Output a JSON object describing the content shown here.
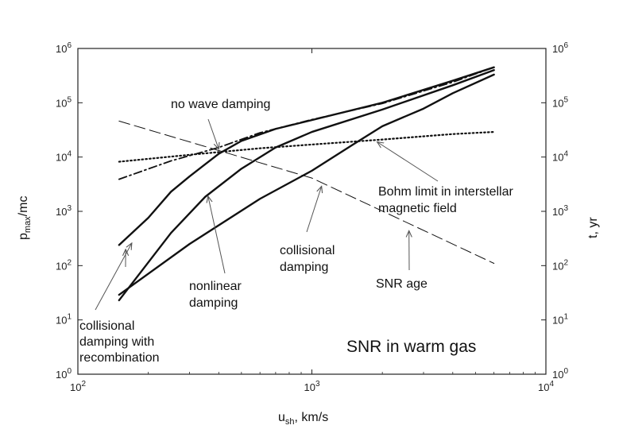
{
  "chart_data": {
    "type": "line",
    "title": "SNR in warm gas",
    "xlabel": {
      "main": "u",
      "sub": "sh",
      "rest": ", km/s"
    },
    "ylabel_left": {
      "main": "p",
      "sub": "max",
      "rest": "/mc"
    },
    "ylabel_right": "t, yr",
    "x_scale": "log",
    "y_scale": "log",
    "xlim": [
      100,
      10000
    ],
    "ylim": [
      1,
      1000000
    ],
    "x_ticks": [
      {
        "value": 100,
        "base": "10",
        "exp": "2"
      },
      {
        "value": 1000,
        "base": "10",
        "exp": "3"
      },
      {
        "value": 10000,
        "base": "10",
        "exp": "4"
      }
    ],
    "y_ticks": [
      {
        "value": 1,
        "base": "10",
        "exp": "0"
      },
      {
        "value": 10,
        "base": "10",
        "exp": "1"
      },
      {
        "value": 100,
        "base": "10",
        "exp": "2"
      },
      {
        "value": 1000,
        "base": "10",
        "exp": "3"
      },
      {
        "value": 10000,
        "base": "10",
        "exp": "4"
      },
      {
        "value": 100000,
        "base": "10",
        "exp": "5"
      },
      {
        "value": 1000000,
        "base": "10",
        "exp": "6"
      }
    ],
    "grid": false,
    "series": [
      {
        "id": "no-wave-damping",
        "style": "dash-dot",
        "points": [
          [
            150,
            3900
          ],
          [
            250,
            8500
          ],
          [
            400,
            15000
          ],
          [
            600,
            28000
          ],
          [
            1000,
            49000
          ],
          [
            2000,
            97000
          ],
          [
            4000,
            240000
          ],
          [
            6000,
            450000
          ]
        ]
      },
      {
        "id": "collisional-damping-with-recombination",
        "style": "solid",
        "points": [
          [
            150,
            240
          ],
          [
            200,
            760
          ],
          [
            250,
            2300
          ],
          [
            300,
            4400
          ],
          [
            400,
            11500
          ],
          [
            500,
            19800
          ],
          [
            700,
            33000
          ],
          [
            1000,
            48000
          ],
          [
            2000,
            100000
          ],
          [
            4000,
            255000
          ],
          [
            6000,
            450000
          ]
        ]
      },
      {
        "id": "nonlinear-damping",
        "style": "solid",
        "points": [
          [
            150,
            23
          ],
          [
            250,
            400
          ],
          [
            350,
            1850
          ],
          [
            500,
            6100
          ],
          [
            700,
            15000
          ],
          [
            1000,
            29000
          ],
          [
            2000,
            75000
          ],
          [
            4000,
            210000
          ],
          [
            6000,
            400000
          ]
        ]
      },
      {
        "id": "collisional-damping",
        "style": "solid",
        "points": [
          [
            150,
            29
          ],
          [
            300,
            250
          ],
          [
            600,
            1700
          ],
          [
            1000,
            5600
          ],
          [
            1500,
            17000
          ],
          [
            2000,
            37000
          ],
          [
            3000,
            78000
          ],
          [
            4000,
            150000
          ],
          [
            6000,
            330000
          ]
        ]
      },
      {
        "id": "bohm-limit",
        "style": "dotted",
        "points": [
          [
            150,
            8200
          ],
          [
            300,
            11000
          ],
          [
            600,
            14500
          ],
          [
            1000,
            17000
          ],
          [
            2000,
            21000
          ],
          [
            4000,
            26500
          ],
          [
            6000,
            29000
          ]
        ]
      },
      {
        "id": "snr-age",
        "axis": "right",
        "style": "long-dash",
        "points": [
          [
            150,
            46000
          ],
          [
            1000,
            4100
          ],
          [
            6000,
            110
          ]
        ]
      }
    ],
    "annotations": [
      {
        "id": "no-wave-damping",
        "lines": [
          "no wave damping"
        ],
        "arrow_to": [
          400,
          14000
        ]
      },
      {
        "id": "bohm-limit",
        "lines": [
          "Bohm limit in interstellar",
          "magnetic field"
        ],
        "arrow_to": [
          1900,
          19000
        ]
      },
      {
        "id": "collisional-damping",
        "lines": [
          "collisional",
          "damping"
        ],
        "arrow_to": [
          1100,
          2900
        ]
      },
      {
        "id": "nonlinear-damping",
        "lines": [
          "nonlinear",
          "damping"
        ],
        "arrow_to": [
          360,
          1900
        ]
      },
      {
        "id": "snr-age",
        "lines": [
          "SNR age"
        ],
        "arrow_to": [
          2600,
          440
        ]
      },
      {
        "id": "collisional-damping-with-recombination",
        "lines": [
          "collisional",
          "damping with",
          "recombination"
        ],
        "arrow_to": [
          170,
          260
        ],
        "arrow_to2": [
          160,
          200
        ]
      }
    ]
  }
}
